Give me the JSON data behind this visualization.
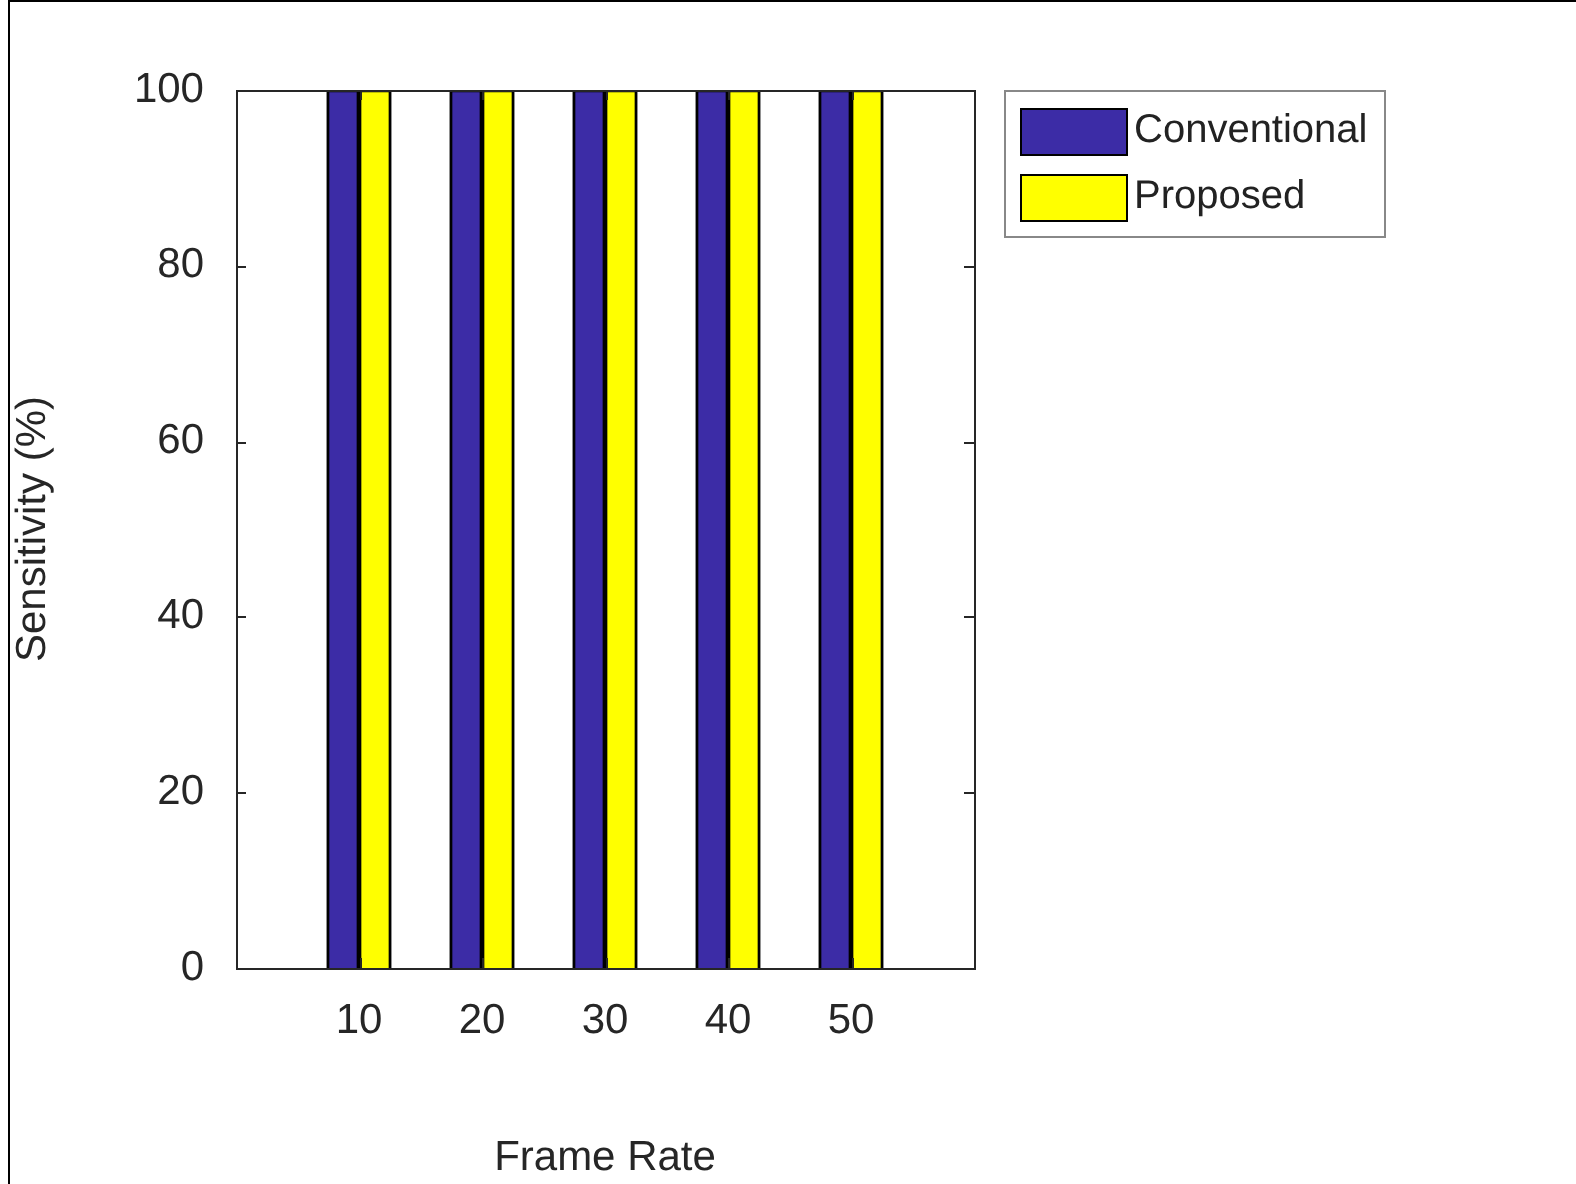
{
  "chart_data": {
    "type": "bar",
    "xlabel": "Frame Rate",
    "ylabel": "Sensitivity (%)",
    "x": [
      10,
      20,
      30,
      40,
      50
    ],
    "series": [
      {
        "name": "Conventional",
        "color": "#3c2ca6",
        "values": [
          100,
          100,
          100,
          100,
          100
        ]
      },
      {
        "name": "Proposed",
        "color": "#ffff00",
        "values": [
          100,
          100,
          100,
          100,
          100
        ]
      }
    ],
    "xlim": [
      0,
      60
    ],
    "xticks": [
      10,
      20,
      30,
      40,
      50
    ],
    "ylim": [
      0,
      100
    ],
    "yticks": [
      0,
      20,
      40,
      60,
      80,
      100
    ],
    "grid": false,
    "legend": "top right"
  }
}
